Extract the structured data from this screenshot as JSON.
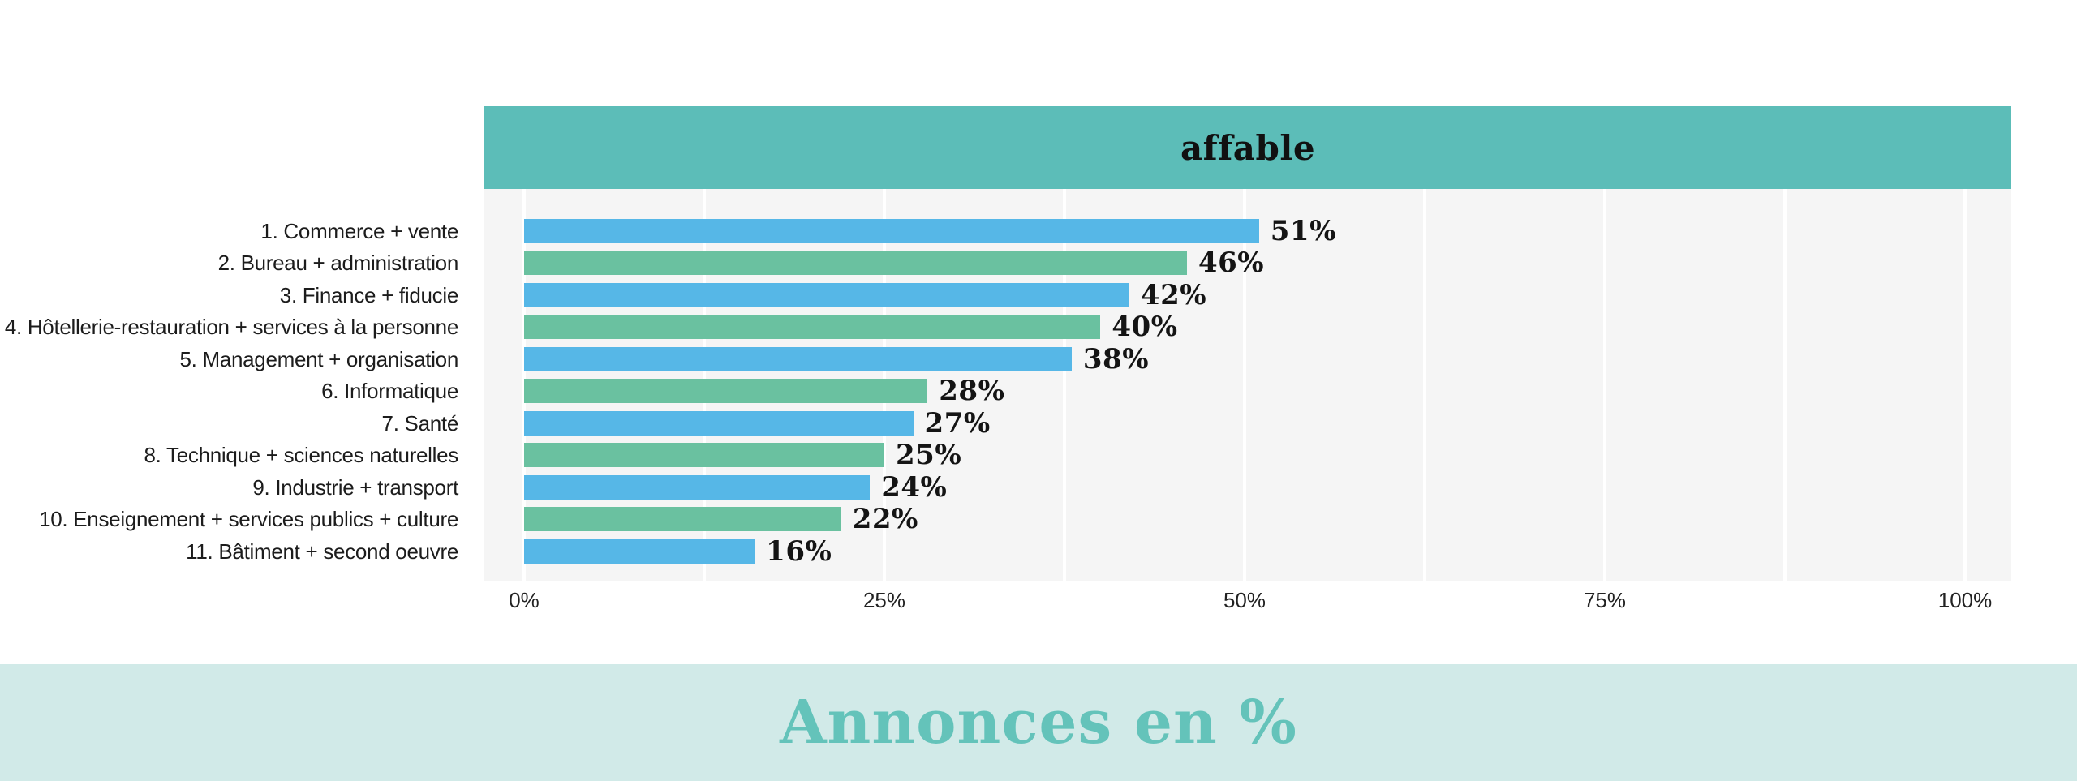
{
  "header": {
    "title": "affable"
  },
  "footer": {
    "caption": "Annonces en %"
  },
  "colors": {
    "header_bg": "#5cbdb8",
    "plot_bg": "#f5f5f5",
    "gridline": "#ffffff",
    "bar_blue": "#56b7e7",
    "bar_green": "#6ac1a0",
    "value_text": "#141414",
    "label_text": "#1c1c1c",
    "footer_bg": "#d1eae8",
    "footer_text": "#64c3ba"
  },
  "chart_data": {
    "type": "bar",
    "orientation": "horizontal",
    "title": "affable",
    "xlabel": "Annonces en %",
    "ylabel": "",
    "xlim": [
      0,
      100
    ],
    "grid": "vertical white gridlines every 12.5%",
    "legend_position": "none",
    "categories": [
      "1. Commerce + vente",
      "2. Bureau + administration",
      "3. Finance + fiducie",
      "4. Hôtellerie-restauration + services à la personne",
      "5. Management + organisation",
      "6. Informatique",
      "7. Santé",
      "8. Technique + sciences naturelles",
      "9. Industrie + transport",
      "10. Enseignement + services publics + culture",
      "11. Bâtiment + second oeuvre"
    ],
    "values": [
      51,
      46,
      42,
      40,
      38,
      28,
      27,
      25,
      24,
      22,
      16
    ],
    "value_labels": [
      "51%",
      "46%",
      "42%",
      "40%",
      "38%",
      "28%",
      "27%",
      "25%",
      "24%",
      "22%",
      "16%"
    ],
    "bar_color_pattern": [
      "#56b7e7",
      "#6ac1a0"
    ],
    "x_ticks": [
      {
        "label": "0%",
        "pct": 0
      },
      {
        "label": "25%",
        "pct": 25
      },
      {
        "label": "50%",
        "pct": 50
      },
      {
        "label": "75%",
        "pct": 75
      },
      {
        "label": "100%",
        "pct": 100
      }
    ],
    "gridline_pcts": [
      0,
      12.5,
      25,
      37.5,
      50,
      62.5,
      75,
      87.5,
      100
    ]
  }
}
